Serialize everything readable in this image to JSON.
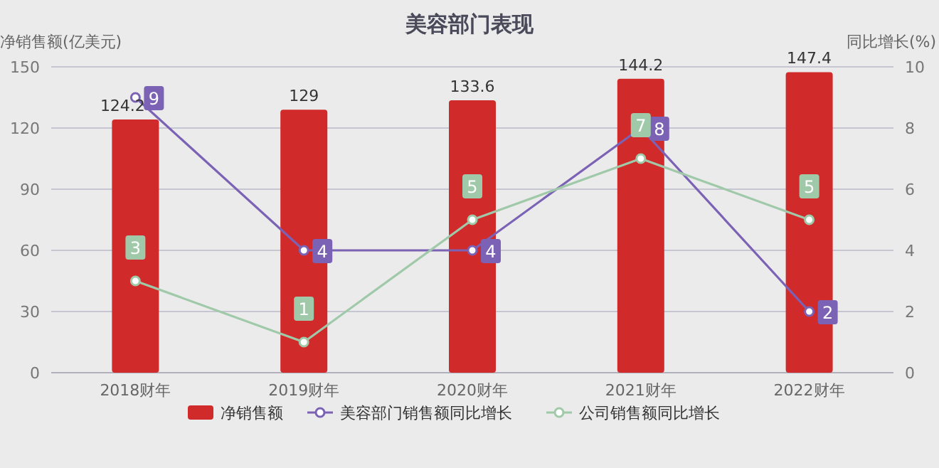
{
  "chart_data": {
    "type": "bar",
    "title": "美容部门表现",
    "ylabel": "净销售额(亿美元)",
    "y2label": "同比增长(%)",
    "categories": [
      "2018财年",
      "2019财年",
      "2020财年",
      "2021财年",
      "2022财年"
    ],
    "series": [
      {
        "name": "净销售额",
        "color": "#d12a2a",
        "values": [
          124.2,
          129,
          133.6,
          144.2,
          147.4
        ]
      },
      {
        "name": "美容部门销售额同比增长",
        "type": "line",
        "axis": "y2",
        "color": "#7b62b5",
        "values": [
          9,
          4,
          4,
          8,
          2
        ]
      },
      {
        "name": "公司销售额同比增长",
        "type": "line",
        "axis": "y2",
        "color": "#9fc9a8",
        "values": [
          3,
          1,
          5,
          7,
          5
        ]
      }
    ],
    "ylim": [
      0,
      150
    ],
    "yticks": [
      0,
      30,
      60,
      90,
      120,
      150
    ],
    "y2lim": [
      0,
      10
    ],
    "y2ticks": [
      0,
      2,
      4,
      6,
      8,
      10
    ],
    "grid": "y",
    "legend": "bottom",
    "data_labels": true,
    "marker": "circle"
  }
}
